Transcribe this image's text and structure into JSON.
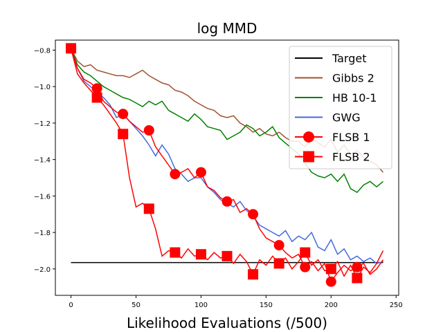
{
  "chart_data": {
    "type": "line",
    "title": "log MMD",
    "xlabel": "Likelihood Evaluations (/500)",
    "ylabel": "",
    "xlim": [
      -12,
      252
    ],
    "ylim": [
      -2.145,
      -0.745
    ],
    "xticks": [
      0,
      50,
      100,
      150,
      200,
      250
    ],
    "yticks": [
      -2.0,
      -1.8,
      -1.6,
      -1.4,
      -1.2,
      -1.0,
      -0.8
    ],
    "xtick_labels": [
      "0",
      "50",
      "100",
      "150",
      "200",
      "250"
    ],
    "ytick_labels": [
      "−2.0",
      "−1.8",
      "−1.6",
      "−1.4",
      "−1.2",
      "−1.0",
      "−0.8"
    ],
    "legend_position": "top-right",
    "grid": false,
    "series": [
      {
        "name": "Target",
        "color": "#000000",
        "marker": "none",
        "x": [
          0,
          240
        ],
        "y": [
          -1.965,
          -1.965
        ]
      },
      {
        "name": "Gibbs 2",
        "color": "#a0522d",
        "marker": "none",
        "x": [
          0,
          5,
          10,
          15,
          20,
          25,
          30,
          35,
          40,
          45,
          50,
          55,
          60,
          65,
          70,
          75,
          80,
          85,
          90,
          95,
          100,
          105,
          110,
          115,
          120,
          125,
          130,
          135,
          140,
          145,
          150,
          155,
          160,
          165,
          170,
          175,
          180,
          185,
          190,
          195,
          200,
          205,
          210,
          215,
          220,
          225,
          230,
          235,
          240
        ],
        "y": [
          -0.79,
          -0.86,
          -0.89,
          -0.88,
          -0.91,
          -0.92,
          -0.93,
          -0.94,
          -0.94,
          -0.95,
          -0.93,
          -0.91,
          -0.94,
          -0.96,
          -0.98,
          -0.99,
          -1.02,
          -1.03,
          -1.05,
          -1.08,
          -1.1,
          -1.12,
          -1.13,
          -1.16,
          -1.17,
          -1.16,
          -1.2,
          -1.22,
          -1.25,
          -1.23,
          -1.26,
          -1.27,
          -1.25,
          -1.28,
          -1.3,
          -1.3,
          -1.33,
          -1.28,
          -1.31,
          -1.33,
          -1.29,
          -1.36,
          -1.32,
          -1.37,
          -1.35,
          -1.39,
          -1.41,
          -1.43,
          -1.47
        ]
      },
      {
        "name": "HB 10-1",
        "color": "#008000",
        "marker": "none",
        "x": [
          0,
          5,
          10,
          15,
          20,
          25,
          30,
          35,
          40,
          45,
          50,
          55,
          60,
          65,
          70,
          75,
          80,
          85,
          90,
          95,
          100,
          105,
          110,
          115,
          120,
          125,
          130,
          135,
          140,
          145,
          150,
          155,
          160,
          165,
          170,
          175,
          180,
          185,
          190,
          195,
          200,
          205,
          210,
          215,
          220,
          225,
          230,
          235,
          240
        ],
        "y": [
          -0.79,
          -0.88,
          -0.92,
          -0.94,
          -0.97,
          -1.0,
          -1.02,
          -1.04,
          -1.06,
          -1.07,
          -1.09,
          -1.11,
          -1.08,
          -1.1,
          -1.08,
          -1.13,
          -1.15,
          -1.17,
          -1.19,
          -1.15,
          -1.18,
          -1.22,
          -1.23,
          -1.24,
          -1.29,
          -1.27,
          -1.25,
          -1.21,
          -1.23,
          -1.27,
          -1.25,
          -1.22,
          -1.28,
          -1.31,
          -1.34,
          -1.37,
          -1.42,
          -1.47,
          -1.49,
          -1.5,
          -1.48,
          -1.52,
          -1.48,
          -1.56,
          -1.58,
          -1.54,
          -1.52,
          -1.55,
          -1.52
        ]
      },
      {
        "name": "GWG",
        "color": "#4169e1",
        "marker": "none",
        "x": [
          0,
          5,
          10,
          15,
          20,
          25,
          30,
          35,
          40,
          45,
          50,
          55,
          60,
          65,
          70,
          75,
          80,
          85,
          90,
          95,
          100,
          105,
          110,
          115,
          120,
          125,
          130,
          135,
          140,
          145,
          150,
          155,
          160,
          165,
          170,
          175,
          180,
          185,
          190,
          195,
          200,
          205,
          210,
          215,
          220,
          225,
          230,
          235,
          240
        ],
        "y": [
          -0.79,
          -0.9,
          -0.97,
          -1.0,
          -1.03,
          -1.06,
          -1.1,
          -1.17,
          -1.15,
          -1.19,
          -1.23,
          -1.27,
          -1.32,
          -1.38,
          -1.32,
          -1.37,
          -1.45,
          -1.48,
          -1.52,
          -1.5,
          -1.5,
          -1.55,
          -1.58,
          -1.62,
          -1.64,
          -1.66,
          -1.63,
          -1.68,
          -1.71,
          -1.76,
          -1.78,
          -1.8,
          -1.82,
          -1.79,
          -1.85,
          -1.82,
          -1.84,
          -1.8,
          -1.88,
          -1.9,
          -1.84,
          -1.92,
          -1.89,
          -1.95,
          -1.93,
          -1.96,
          -1.94,
          -1.97,
          -1.96
        ]
      },
      {
        "name": "FLSB 1",
        "color": "#ff0000",
        "marker": "circle",
        "x": [
          0,
          5,
          10,
          15,
          20,
          25,
          30,
          35,
          40,
          45,
          50,
          55,
          60,
          65,
          70,
          75,
          80,
          85,
          90,
          95,
          100,
          105,
          110,
          115,
          120,
          125,
          130,
          135,
          140,
          145,
          150,
          155,
          160,
          165,
          170,
          175,
          180,
          185,
          190,
          195,
          200,
          205,
          210,
          215,
          220,
          225,
          230,
          235,
          240
        ],
        "y": [
          -0.79,
          -0.9,
          -0.96,
          -0.98,
          -1.01,
          -1.08,
          -1.11,
          -1.14,
          -1.15,
          -1.19,
          -1.22,
          -1.25,
          -1.24,
          -1.33,
          -1.38,
          -1.43,
          -1.48,
          -1.47,
          -1.45,
          -1.5,
          -1.47,
          -1.55,
          -1.57,
          -1.61,
          -1.63,
          -1.62,
          -1.69,
          -1.67,
          -1.7,
          -1.78,
          -1.83,
          -1.85,
          -1.87,
          -1.91,
          -1.94,
          -1.92,
          -1.99,
          -1.96,
          -2.01,
          -1.97,
          -2.07,
          -2.02,
          -1.98,
          -2.01,
          -1.99,
          -1.97,
          -2.03,
          -2.0,
          -1.95
        ],
        "marker_x": [
          0,
          20,
          40,
          60,
          80,
          100,
          120,
          140,
          160,
          180,
          200,
          220
        ],
        "marker_y": [
          -0.79,
          -1.01,
          -1.15,
          -1.24,
          -1.48,
          -1.47,
          -1.63,
          -1.7,
          -1.87,
          -1.99,
          -2.07,
          -1.99
        ]
      },
      {
        "name": "FLSB 2",
        "color": "#ff0000",
        "marker": "square",
        "x": [
          0,
          5,
          10,
          15,
          20,
          25,
          30,
          35,
          40,
          45,
          50,
          55,
          60,
          65,
          70,
          75,
          80,
          85,
          90,
          95,
          100,
          105,
          110,
          115,
          120,
          125,
          130,
          135,
          140,
          145,
          150,
          155,
          160,
          165,
          170,
          175,
          180,
          185,
          190,
          195,
          200,
          205,
          210,
          215,
          220,
          225,
          230,
          235,
          240
        ],
        "y": [
          -0.79,
          -0.93,
          -0.98,
          -1.02,
          -1.06,
          -1.1,
          -1.15,
          -1.2,
          -1.26,
          -1.5,
          -1.66,
          -1.64,
          -1.67,
          -1.78,
          -1.93,
          -1.9,
          -1.91,
          -1.94,
          -1.89,
          -1.93,
          -1.92,
          -1.95,
          -1.91,
          -1.94,
          -1.93,
          -1.97,
          -1.92,
          -1.96,
          -2.03,
          -1.95,
          -1.98,
          -1.93,
          -1.97,
          -1.94,
          -2.0,
          -1.96,
          -1.91,
          -1.98,
          -1.95,
          -2.01,
          -2.0,
          -1.96,
          -2.04,
          -1.98,
          -2.05,
          -1.99,
          -2.02,
          -1.97,
          -1.9
        ],
        "marker_x": [
          0,
          20,
          40,
          60,
          80,
          100,
          120,
          140,
          160,
          180,
          200,
          220
        ],
        "marker_y": [
          -0.79,
          -1.06,
          -1.26,
          -1.67,
          -1.91,
          -1.92,
          -1.93,
          -2.03,
          -1.97,
          -1.91,
          -2.0,
          -2.05
        ]
      }
    ]
  }
}
